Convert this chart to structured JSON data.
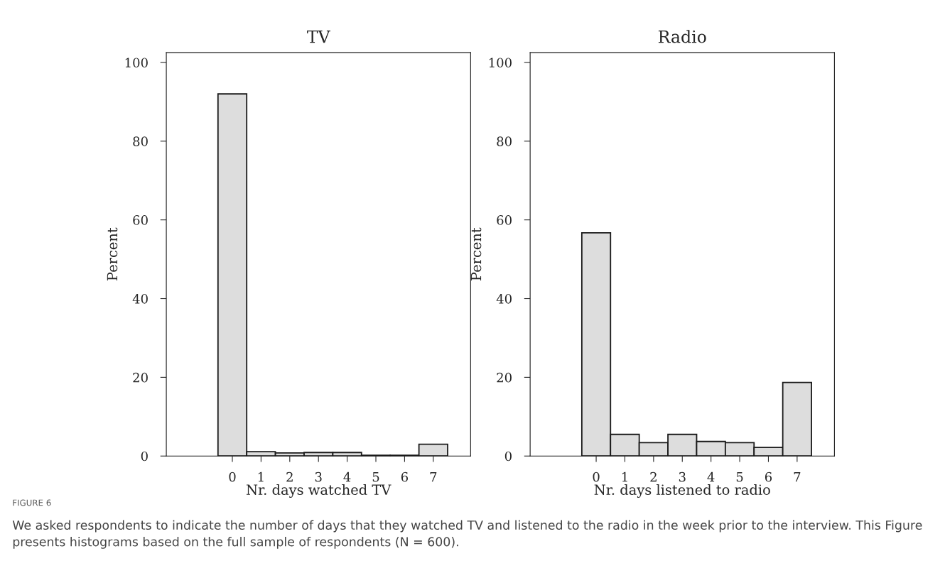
{
  "chart_data": [
    {
      "type": "histogram",
      "title": "TV",
      "xlabel": "Nr. days watched TV",
      "ylabel": "Percent",
      "bins": [
        -0.5,
        0.5,
        1.5,
        2.5,
        3.5,
        4.5,
        5.5,
        6.5,
        7.5
      ],
      "values": [
        92,
        1.1,
        0.8,
        0.9,
        0.9,
        0.2,
        0.2,
        3.0
      ],
      "color": "#dddddd",
      "xlim": [
        -2.3,
        8.3
      ],
      "xticks": [
        0,
        1,
        2,
        3,
        4,
        5,
        6,
        7
      ],
      "ylim": [
        0,
        102.5
      ],
      "yticks": [
        0,
        20,
        40,
        60,
        80,
        100
      ],
      "grid": false,
      "legend": false,
      "annotations": [
        "FIGURE 6",
        "We asked respondents to indicate the number of days that they watched TV and listened to the radio in the week prior to the interview. This Figure presents histograms based on the full sample of respondents (N = 600)."
      ]
    },
    {
      "type": "histogram",
      "title": "Radio",
      "xlabel": "Nr. days listened to radio",
      "ylabel": "Percent",
      "bins": [
        -0.5,
        0.5,
        1.5,
        2.5,
        3.5,
        4.5,
        5.5,
        6.5,
        7.5
      ],
      "values": [
        56.7,
        5.5,
        3.4,
        5.5,
        3.7,
        3.4,
        2.2,
        18.7
      ],
      "color": "#dddddd",
      "xlim": [
        -2.3,
        8.3
      ],
      "xticks": [
        0,
        1,
        2,
        3,
        4,
        5,
        6,
        7
      ],
      "ylim": [
        0,
        102.5
      ],
      "yticks": [
        0,
        20,
        40,
        60,
        80,
        100
      ],
      "grid": false,
      "legend": false
    }
  ]
}
